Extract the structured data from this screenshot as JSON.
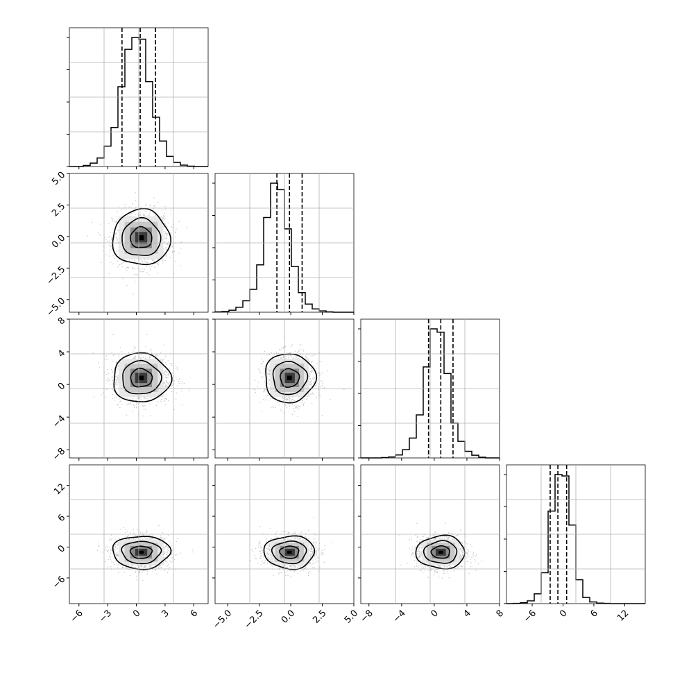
{
  "chart_data": {
    "type": "corner",
    "grid": true,
    "ranges": [
      [
        -7,
        7.5
      ],
      [
        -6,
        5
      ],
      [
        -9,
        8
      ],
      [
        -11,
        16
      ]
    ],
    "ticks": [
      [
        "-6",
        "-3",
        "0",
        "3",
        "6"
      ],
      [
        "-5.0",
        "-2.5",
        "0.0",
        "2.5",
        "5.0"
      ],
      [
        "-8",
        "-4",
        "0",
        "4",
        "8"
      ],
      [
        "-6",
        "0",
        "6",
        "12"
      ]
    ],
    "quantiles": [
      [
        -1.5,
        0.4,
        2.0
      ],
      [
        -1.1,
        -0.1,
        0.9
      ],
      [
        -0.7,
        0.8,
        2.3
      ],
      [
        -2.5,
        -1.0,
        0.7
      ]
    ],
    "histograms": [
      {
        "edges_start": -7,
        "bin_width": 0.725,
        "counts": [
          0,
          0,
          3,
          10,
          25,
          60,
          115,
          235,
          345,
          380,
          375,
          250,
          145,
          75,
          30,
          12,
          4,
          1,
          0,
          0
        ]
      },
      {
        "edges_start": -6,
        "bin_width": 0.55,
        "counts": [
          1,
          2,
          6,
          15,
          35,
          70,
          145,
          290,
          395,
          375,
          255,
          140,
          60,
          25,
          10,
          4,
          1,
          0,
          0,
          0
        ]
      },
      {
        "edges_start": -9,
        "bin_width": 0.85,
        "counts": [
          0,
          0,
          0,
          1,
          3,
          9,
          25,
          60,
          130,
          275,
          390,
          380,
          255,
          105,
          50,
          20,
          8,
          2,
          0,
          0
        ]
      },
      {
        "edges_start": -11,
        "bin_width": 1.35,
        "counts": [
          0,
          1,
          3,
          10,
          35,
          110,
          330,
          460,
          455,
          280,
          85,
          22,
          6,
          2,
          1,
          0,
          0,
          0,
          0,
          0
        ]
      }
    ],
    "pairs": [
      {
        "row": 1,
        "col": 0,
        "center": [
          0.5,
          -0.1
        ],
        "sigma": [
          1.5,
          1.1
        ]
      },
      {
        "row": 2,
        "col": 0,
        "center": [
          0.5,
          0.8
        ],
        "sigma": [
          1.5,
          1.5
        ]
      },
      {
        "row": 2,
        "col": 1,
        "center": [
          -0.1,
          0.8
        ],
        "sigma": [
          1.0,
          1.5
        ]
      },
      {
        "row": 3,
        "col": 0,
        "center": [
          0.5,
          -1.0
        ],
        "sigma": [
          1.5,
          1.6
        ]
      },
      {
        "row": 3,
        "col": 1,
        "center": [
          -0.1,
          -1.0
        ],
        "sigma": [
          1.0,
          1.6
        ]
      },
      {
        "row": 3,
        "col": 2,
        "center": [
          0.8,
          -1.0
        ],
        "sigma": [
          1.5,
          1.6
        ]
      }
    ]
  }
}
